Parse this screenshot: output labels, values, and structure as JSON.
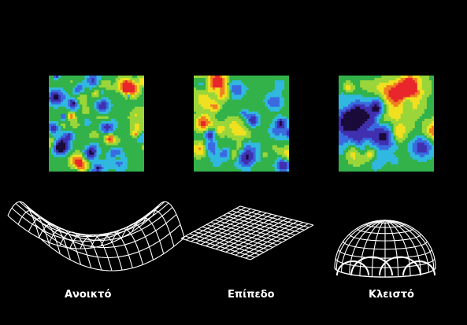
{
  "colors": {
    "background": "#000000",
    "wire": "#ffffff",
    "heat_scale": [
      "#1a0b3a",
      "#4030b0",
      "#3a6ae0",
      "#31b8e0",
      "#33b24a",
      "#9ad63a",
      "#f0e020",
      "#f08020",
      "#e8262c"
    ]
  },
  "panels": [
    {
      "id": "open",
      "label": "Ανοικτό",
      "noise_seed": 11,
      "surface": "saddle"
    },
    {
      "id": "flat",
      "label": "Επίπεδο",
      "noise_seed": 27,
      "surface": "plane"
    },
    {
      "id": "closed",
      "label": "Κλειστό",
      "noise_seed": 53,
      "surface": "dome"
    }
  ]
}
